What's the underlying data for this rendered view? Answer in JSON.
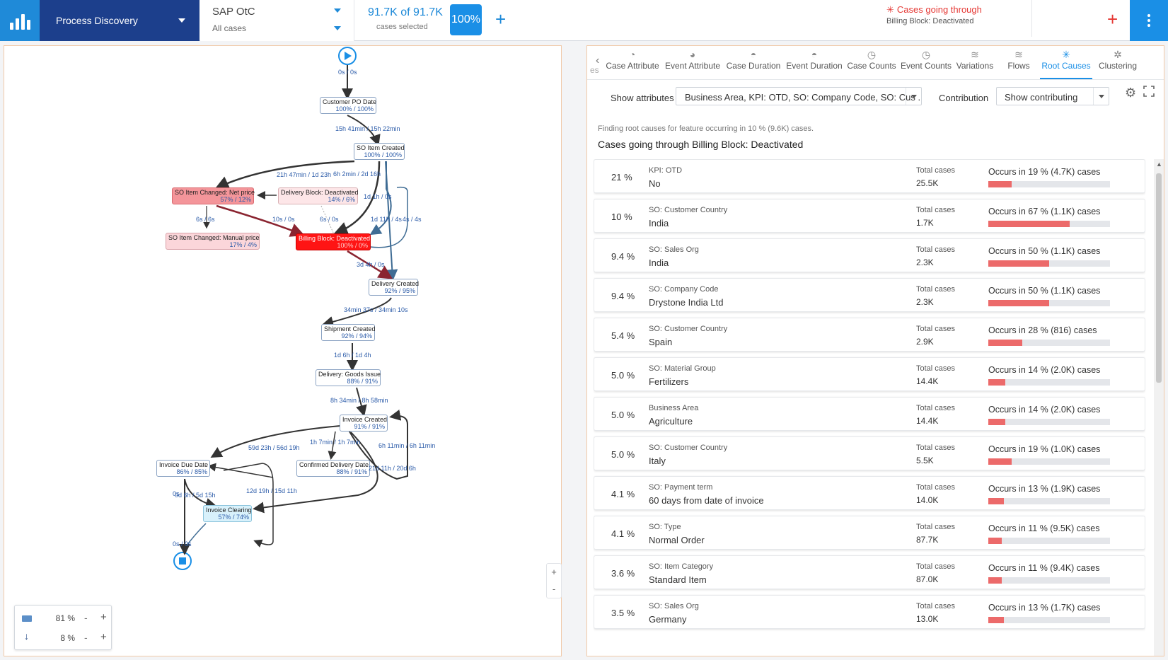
{
  "topbar": {
    "app_name": "Process Discovery",
    "dataset_name": "SAP OtC",
    "dataset_filter": "All cases",
    "cases_count": "91.7K of 91.7K",
    "cases_label": "cases selected",
    "cases_pct": "100%",
    "add_filter": "+",
    "active_filter_title": "Cases going through",
    "active_filter_sub": "Billing Block: Deactivated",
    "active_filter_add": "+"
  },
  "process_map": {
    "start_edge_label": "0s / 0s",
    "nodes": [
      {
        "id": "customer_po_date",
        "title": "Customer PO Date",
        "pct": "100% / 100%"
      },
      {
        "id": "so_item_created",
        "title": "SO Item Created",
        "pct": "100% / 100%"
      },
      {
        "id": "so_item_changed_net_price",
        "title": "SO Item Changed: Net price",
        "pct": "57% / 12%"
      },
      {
        "id": "delivery_block_deactivated",
        "title": "Delivery Block: Deactivated",
        "pct": "14% / 6%"
      },
      {
        "id": "so_item_changed_manual_price",
        "title": "SO Item Changed: Manual price",
        "pct": "17% / 4%"
      },
      {
        "id": "billing_block_deactivated",
        "title": "Billing Block: Deactivated",
        "pct": "100% / 0%"
      },
      {
        "id": "delivery_created",
        "title": "Delivery Created",
        "pct": "92% / 95%"
      },
      {
        "id": "shipment_created",
        "title": "Shipment Created",
        "pct": "92% / 94%"
      },
      {
        "id": "delivery_goods_issue",
        "title": "Delivery: Goods Issue",
        "pct": "88% / 91%"
      },
      {
        "id": "invoice_created",
        "title": "Invoice Created",
        "pct": "91% / 91%"
      },
      {
        "id": "invoice_due_date",
        "title": "Invoice Due Date",
        "pct": "86% / 85%"
      },
      {
        "id": "confirmed_delivery_date",
        "title": "Confirmed Delivery Date",
        "pct": "88% / 91%"
      },
      {
        "id": "invoice_clearing",
        "title": "Invoice Clearing",
        "pct": "57% / 74%"
      }
    ],
    "edge_labels": [
      "15h 41min / 15h 22min",
      "21h 47min / 1d 23h",
      "6h 2min / 2d 16h",
      "1d 1h / 0s",
      "6s / 6s",
      "10s / 0s",
      "6s / 0s",
      "1d 11h / 4s",
      "4s / 4s",
      "3d 4h / 0s",
      "34min 37s / 34min 10s",
      "1d 6h / 1d 4h",
      "8h 34min / 8h 58min",
      "59d 23h / 56d 19h",
      "1h 7min / 1h 7min",
      "6h 11min / 6h 11min",
      "21d 11h / 20d 6h",
      "0s",
      "0d 6h / 5d 15h",
      "12d 19h / 15d 11h",
      "0s / 0s"
    ],
    "slider_activities_pct": "81 %",
    "slider_paths_pct": "8 %",
    "slider_minus": "-",
    "slider_plus": "+",
    "zoom_in": "+",
    "zoom_out": "-"
  },
  "right_panel": {
    "prev_tab_partial": "es",
    "tabs": [
      {
        "label": "Case Attribute",
        "icon": "pie-chart-icon"
      },
      {
        "label": "Event Attribute",
        "icon": "pie-chart-icon"
      },
      {
        "label": "Case Duration",
        "icon": "gauge-icon"
      },
      {
        "label": "Event Duration",
        "icon": "gauge-icon"
      },
      {
        "label": "Case Counts",
        "icon": "clock-icon"
      },
      {
        "label": "Event Counts",
        "icon": "clock-icon"
      },
      {
        "label": "Variations",
        "icon": "variations-icon"
      },
      {
        "label": "Flows",
        "icon": "flows-icon"
      },
      {
        "label": "Root Causes",
        "icon": "root-causes-icon",
        "active": true
      },
      {
        "label": "Clustering",
        "icon": "clustering-icon"
      }
    ],
    "show_attributes_label": "Show attributes",
    "show_attributes_value": "Business Area, KPI: OTD, SO: Company Code, SO: Cus ...",
    "contribution_label": "Contribution",
    "contribution_value": "Show contributing",
    "finding_note": "Finding root causes for feature occurring in 10 % (9.6K) cases.",
    "finding_title": "Cases going through Billing Block: Deactivated",
    "total_cases_label": "Total cases",
    "root_causes": [
      {
        "pct": "21 %",
        "attr": "KPI: OTD",
        "value": "No",
        "total": "25.5K",
        "occurs": "Occurs in 19 % (4.7K) cases",
        "occurs_frac": 0.19
      },
      {
        "pct": "10 %",
        "attr": "SO: Customer Country",
        "value": "India",
        "total": "1.7K",
        "occurs": "Occurs in 67 % (1.1K) cases",
        "occurs_frac": 0.67
      },
      {
        "pct": "9.4 %",
        "attr": "SO: Sales Org",
        "value": "India",
        "total": "2.3K",
        "occurs": "Occurs in 50 % (1.1K) cases",
        "occurs_frac": 0.5
      },
      {
        "pct": "9.4 %",
        "attr": "SO: Company Code",
        "value": "Drystone India Ltd",
        "total": "2.3K",
        "occurs": "Occurs in 50 % (1.1K) cases",
        "occurs_frac": 0.5
      },
      {
        "pct": "5.4 %",
        "attr": "SO: Customer Country",
        "value": "Spain",
        "total": "2.9K",
        "occurs": "Occurs in 28 % (816) cases",
        "occurs_frac": 0.28
      },
      {
        "pct": "5.0 %",
        "attr": "SO: Material Group",
        "value": "Fertilizers",
        "total": "14.4K",
        "occurs": "Occurs in 14 % (2.0K) cases",
        "occurs_frac": 0.14
      },
      {
        "pct": "5.0 %",
        "attr": "Business Area",
        "value": "Agriculture",
        "total": "14.4K",
        "occurs": "Occurs in 14 % (2.0K) cases",
        "occurs_frac": 0.14
      },
      {
        "pct": "5.0 %",
        "attr": "SO: Customer Country",
        "value": "Italy",
        "total": "5.5K",
        "occurs": "Occurs in 19 % (1.0K) cases",
        "occurs_frac": 0.19
      },
      {
        "pct": "4.1 %",
        "attr": "SO: Payment term",
        "value": "60 days from date of invoice",
        "total": "14.0K",
        "occurs": "Occurs in 13 % (1.9K) cases",
        "occurs_frac": 0.13
      },
      {
        "pct": "4.1 %",
        "attr": "SO: Type",
        "value": "Normal Order",
        "total": "87.7K",
        "occurs": "Occurs in 11 % (9.5K) cases",
        "occurs_frac": 0.11
      },
      {
        "pct": "3.6 %",
        "attr": "SO: Item Category",
        "value": "Standard Item",
        "total": "87.0K",
        "occurs": "Occurs in 11 % (9.4K) cases",
        "occurs_frac": 0.11
      },
      {
        "pct": "3.5 %",
        "attr": "SO: Sales Org",
        "value": "Germany",
        "total": "13.0K",
        "occurs": "Occurs in 13 % (1.7K) cases",
        "occurs_frac": 0.13
      }
    ]
  },
  "colors": {
    "brand_blue": "#1a8fe6",
    "app_navy": "#1c3f8c",
    "alert_red": "#e53935",
    "bar_red": "#ec6a6a",
    "node_highlight": "#ff1a1a"
  }
}
